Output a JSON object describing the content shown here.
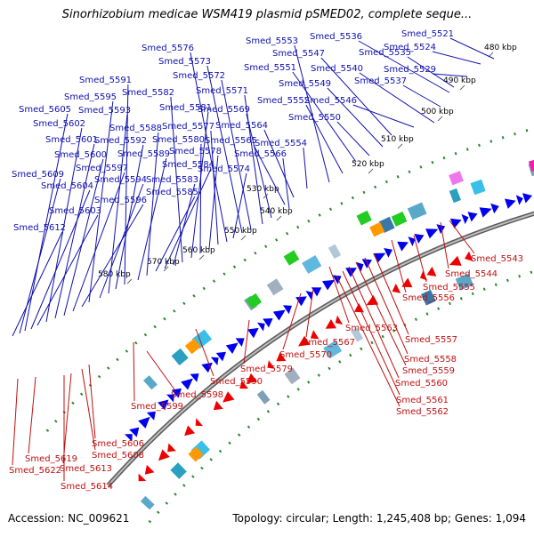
{
  "title": "Sinorhizobium medicae WSM419 plasmid pSMED02, complete seque...",
  "footer": {
    "accession": "Accession: NC_009621",
    "summary": "Topology: circular; Length: 1,245,408 bp; Genes: 1,094"
  },
  "colors": {
    "forward": "#0000ee",
    "reverse": "#ee0000",
    "backbone": "#808080",
    "tick": "#2a8a2a"
  },
  "ticks": [
    "480 kbp",
    "490 kbp",
    "500 kbp",
    "510 kbp",
    "520 kbp",
    "530 kbp",
    "540 kbp",
    "550 kbp",
    "560 kbp",
    "570 kbp",
    "580 kbp"
  ],
  "forward_genes": [
    "Smed_5521",
    "Smed_5524",
    "Smed_5529",
    "Smed_5535",
    "Smed_5536",
    "Smed_5537",
    "Smed_5540",
    "Smed_5546",
    "Smed_5547",
    "Smed_5549",
    "Smed_5550",
    "Smed_5551",
    "Smed_5552",
    "Smed_5553",
    "Smed_5554",
    "Smed_5564",
    "Smed_5565",
    "Smed_5566",
    "Smed_5569",
    "Smed_5571",
    "Smed_5572",
    "Smed_5573",
    "Smed_5574",
    "Smed_5576",
    "Smed_5577",
    "Smed_5578",
    "Smed_5580",
    "Smed_5581",
    "Smed_5582",
    "Smed_5583",
    "Smed_5584",
    "Smed_5585",
    "Smed_5588",
    "Smed_5589",
    "Smed_5591",
    "Smed_5592",
    "Smed_5593",
    "Smed_5594",
    "Smed_5595",
    "Smed_5596",
    "Smed_5597",
    "Smed_5600",
    "Smed_5601",
    "Smed_5602",
    "Smed_5603",
    "Smed_5604",
    "Smed_5605",
    "Smed_5609",
    "Smed_5612"
  ],
  "reverse_genes": [
    "Smed_5543",
    "Smed_5544",
    "Smed_5555",
    "Smed_5556",
    "Smed_5557",
    "Smed_5558",
    "Smed_5559",
    "Smed_5560",
    "Smed_5561",
    "Smed_5562",
    "Smed_5563",
    "Smed_5567",
    "Smed_5570",
    "Smed_5579",
    "Smed_5590",
    "Smed_5598",
    "Smed_5599",
    "Smed_5606",
    "Smed_5608",
    "Smed_5613",
    "Smed_5614",
    "Smed_5619",
    "Smed_5622"
  ]
}
